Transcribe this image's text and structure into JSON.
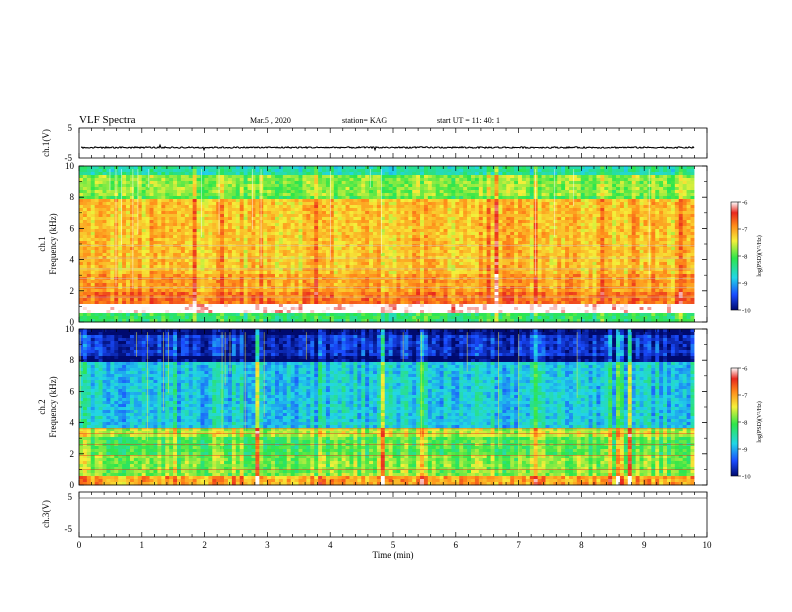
{
  "header": {
    "title": "VLF Spectra",
    "date": "Mar.5 , 2020",
    "station": "station= KAG",
    "start": "start UT = 11: 40: 1"
  },
  "panels": {
    "ch1_wave": {
      "ylabel": "ch.1(V)",
      "yticks": [
        "5",
        "-5"
      ]
    },
    "ch1_spec": {
      "ylabel_line1": "ch.1",
      "ylabel_line2": "Frequency (kHz)",
      "yticks": [
        "0",
        "2",
        "4",
        "6",
        "8",
        "10"
      ]
    },
    "ch2_spec": {
      "ylabel_line1": "ch.2",
      "ylabel_line2": "Frequency (kHz)",
      "yticks": [
        "0",
        "2",
        "4",
        "6",
        "8",
        "10"
      ]
    },
    "ch3_wave": {
      "ylabel": "ch.3(V)",
      "yticks": [
        "5",
        "-5"
      ]
    }
  },
  "xaxis": {
    "label": "Time (min)",
    "ticks": [
      "0",
      "1",
      "2",
      "3",
      "4",
      "5",
      "6",
      "7",
      "8",
      "9",
      "10"
    ]
  },
  "colorbar": {
    "label": "log(PSD)(V²/Hz)",
    "ticks": [
      "-6",
      "-7",
      "-8",
      "-9",
      "-10"
    ]
  },
  "colors": {
    "red": "#e8281e",
    "orange": "#ff8c1a",
    "yellow": "#f5f03a",
    "green": "#2ee64a",
    "cyan": "#22d6e6",
    "blue": "#1a4cff",
    "navy": "#000a6e"
  },
  "chart_data": [
    {
      "type": "line",
      "name_label": "ch.1(V)",
      "ylim": [
        -5,
        5
      ],
      "xlim": [
        0,
        10
      ],
      "description_values": "near-constant signal about -1.5 V",
      "x": [
        0,
        1,
        2,
        3,
        4,
        5,
        6,
        7,
        8,
        9,
        9.8
      ],
      "y": [
        -1.5,
        -1.5,
        -1.5,
        -1.5,
        -1.5,
        -1.5,
        -1.5,
        -1.5,
        -1.5,
        -1.5,
        -1.5
      ]
    },
    {
      "type": "heatmap",
      "channel": "ch.1",
      "xlim": [
        0,
        10
      ],
      "ylim": [
        0,
        10
      ],
      "data_end_min": 9.8,
      "colorbar_range": [
        -10,
        -6
      ],
      "bands_khz_log_psd": [
        {
          "f": [
            9.5,
            10.0
          ],
          "v": -8.5
        },
        {
          "f": [
            8.0,
            9.5
          ],
          "v": -7.8
        },
        {
          "f": [
            7.9,
            8.1
          ],
          "v": -8.0
        },
        {
          "f": [
            3.0,
            7.9
          ],
          "v": -7.2
        },
        {
          "f": [
            2.0,
            3.0
          ],
          "v": -7.0
        },
        {
          "f": [
            1.2,
            2.0
          ],
          "v": -6.8
        },
        {
          "f": [
            0.6,
            1.2
          ],
          "v": -5.9
        },
        {
          "f": [
            0.0,
            0.6
          ],
          "v": -8.2
        }
      ]
    },
    {
      "type": "heatmap",
      "channel": "ch.2",
      "xlim": [
        0,
        10
      ],
      "ylim": [
        0,
        10
      ],
      "data_end_min": 9.8,
      "colorbar_range": [
        -10,
        -6
      ],
      "bands_khz_log_psd": [
        {
          "f": [
            9.7,
            10.0
          ],
          "v": -10.0
        },
        {
          "f": [
            8.2,
            9.7
          ],
          "v": -9.6
        },
        {
          "f": [
            7.9,
            8.2
          ],
          "v": -10.0
        },
        {
          "f": [
            3.6,
            7.9
          ],
          "v": -8.8
        },
        {
          "f": [
            3.0,
            3.6
          ],
          "v": -7.6
        },
        {
          "f": [
            2.0,
            3.0
          ],
          "v": -8.0
        },
        {
          "f": [
            0.6,
            2.0
          ],
          "v": -7.8
        },
        {
          "f": [
            0.0,
            0.6
          ],
          "v": -7.0
        }
      ]
    },
    {
      "type": "line",
      "name_label": "ch.3(V)",
      "ylim": [
        -5,
        5
      ],
      "xlim": [
        0,
        10
      ],
      "x": [],
      "y": []
    }
  ]
}
